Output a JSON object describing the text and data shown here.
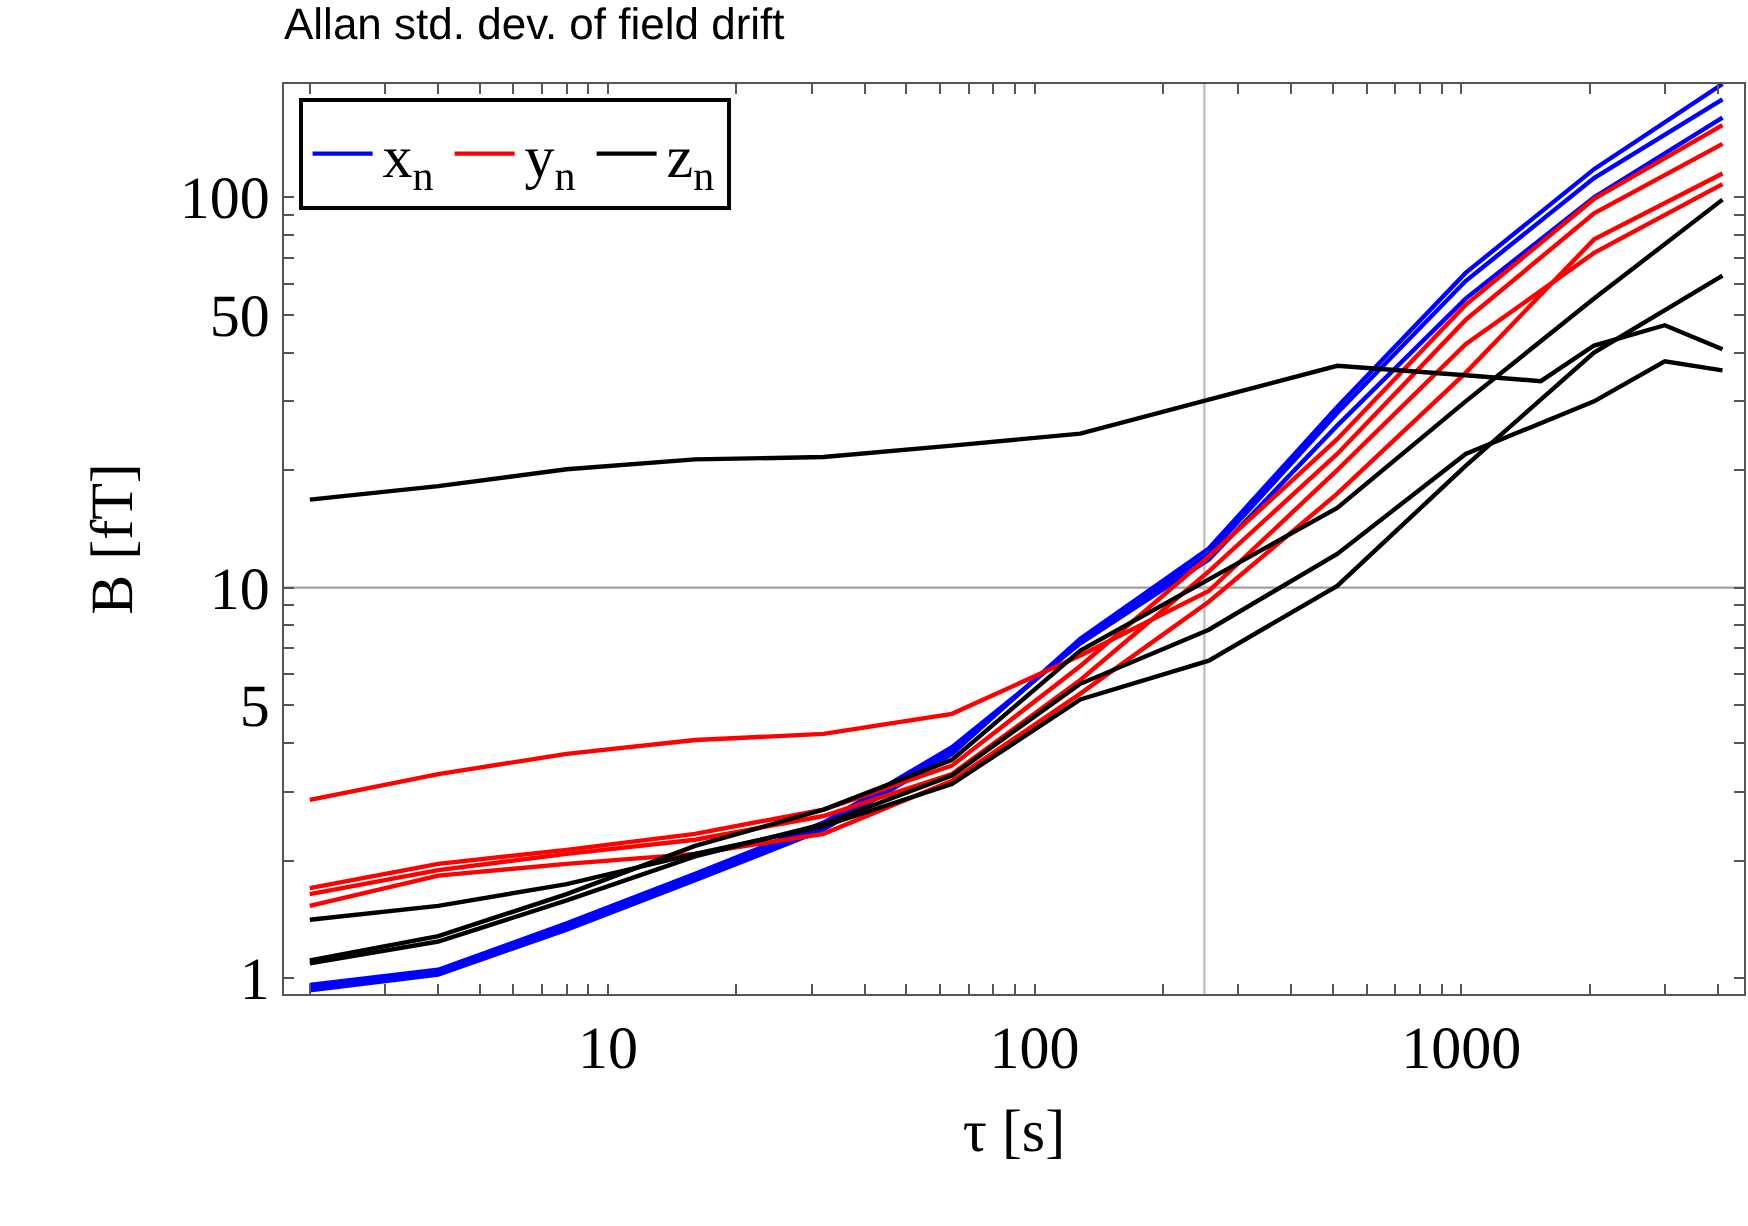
{
  "chart_data": {
    "type": "line",
    "title": "Allan std. dev. of field drift",
    "xlabel": "τ [s]",
    "ylabel": "B [fT]",
    "log": "xy",
    "grid": false,
    "legend": "top left",
    "marker": "none",
    "line_style": "solid",
    "x": [
      2,
      4,
      8,
      16,
      32,
      64,
      128,
      256,
      512,
      1024,
      2048,
      4096
    ],
    "xlim": [
      1.74,
      4600
    ],
    "ylim": [
      0.91,
      195
    ],
    "xticks": [
      {
        "value": 2,
        "label": null
      },
      {
        "value": 3,
        "label": null
      },
      {
        "value": 4,
        "label": null
      },
      {
        "value": 5,
        "label": null
      },
      {
        "value": 6,
        "label": null
      },
      {
        "value": 7,
        "label": null
      },
      {
        "value": 8,
        "label": null
      },
      {
        "value": 9,
        "label": null
      },
      10,
      {
        "value": 20,
        "label": null
      },
      {
        "value": 30,
        "label": null
      },
      {
        "value": 40,
        "label": null
      },
      {
        "value": 50,
        "label": null
      },
      {
        "value": 60,
        "label": null
      },
      {
        "value": 70,
        "label": null
      },
      {
        "value": 80,
        "label": null
      },
      {
        "value": 90,
        "label": null
      },
      100,
      {
        "value": 200,
        "label": null
      },
      {
        "value": 300,
        "label": null
      },
      {
        "value": 400,
        "label": null
      },
      {
        "value": 500,
        "label": null
      },
      {
        "value": 600,
        "label": null
      },
      {
        "value": 700,
        "label": null
      },
      {
        "value": 800,
        "label": null
      },
      {
        "value": 900,
        "label": null
      },
      1000,
      {
        "value": 2000,
        "label": null
      },
      {
        "value": 3000,
        "label": null
      },
      {
        "value": 4000,
        "label": null
      }
    ],
    "yticks": [
      1,
      {
        "value": 2,
        "label": null
      },
      {
        "value": 3,
        "label": null
      },
      {
        "value": 4,
        "label": null
      },
      5,
      {
        "value": 6,
        "label": null
      },
      {
        "value": 7,
        "label": null
      },
      {
        "value": 8,
        "label": null
      },
      {
        "value": 9,
        "label": null
      },
      10,
      {
        "value": 20,
        "label": null
      },
      {
        "value": 30,
        "label": null
      },
      {
        "value": 40,
        "label": null
      },
      50,
      {
        "value": 60,
        "label": null
      },
      {
        "value": 70,
        "label": null
      },
      {
        "value": 80,
        "label": null
      },
      {
        "value": 90,
        "label": null
      },
      100
    ],
    "ref_lines": [
      {
        "axis": "y",
        "value": 10,
        "color": "#a0a0a0"
      },
      {
        "axis": "x",
        "value": 250,
        "color": "#c0c0c0"
      }
    ],
    "series": [
      {
        "name": "x$_{n}$",
        "color": "#0000ff",
        "values": [
          0.93,
          1.02,
          1.33,
          1.78,
          2.4,
          3.75,
          7.4,
          12.6,
          29,
          64,
          118,
          195
        ]
      },
      {
        "color": "#0000ff",
        "values": [
          0.95,
          1.04,
          1.36,
          1.82,
          2.45,
          3.8,
          7.3,
          12.2,
          28,
          61,
          112,
          178
        ]
      },
      {
        "color": "#0000ff",
        "values": [
          0.96,
          1.05,
          1.38,
          1.85,
          2.5,
          3.9,
          7.2,
          11.8,
          26,
          55,
          100,
          160
        ]
      },
      {
        "name": "y$_{n}$",
        "color": "#ff0000",
        "values": [
          2.86,
          3.33,
          3.75,
          4.07,
          4.22,
          4.75,
          6.7,
          9.8,
          20,
          42,
          72,
          108
        ]
      },
      {
        "color": "#ff0000",
        "values": [
          1.7,
          1.96,
          2.13,
          2.34,
          2.7,
          3.5,
          6.3,
          12,
          24,
          53,
          99,
          153
        ]
      },
      {
        "color": "#ff0000",
        "values": [
          1.64,
          1.89,
          2.08,
          2.26,
          2.6,
          3.33,
          5.8,
          11,
          22,
          48.5,
          91,
          137
        ]
      },
      {
        "color": "#ff0000",
        "values": [
          1.53,
          1.83,
          1.96,
          2.08,
          2.34,
          3.2,
          5.35,
          9.2,
          17.4,
          35.5,
          78,
          115
        ]
      },
      {
        "name": "z$_{n}$",
        "color": "#000000",
        "x": [
          2,
          4,
          8,
          16,
          32,
          64,
          128,
          256,
          512,
          1024,
          1536,
          2048,
          3000,
          4096
        ],
        "values": [
          16.8,
          18.2,
          20.1,
          21.3,
          21.6,
          23.1,
          24.8,
          30.3,
          37,
          35,
          33.8,
          41.7,
          47,
          40.8
        ]
      },
      {
        "color": "#000000",
        "values": [
          1.11,
          1.28,
          1.64,
          2.18,
          2.7,
          3.62,
          6.9,
          10.5,
          16,
          30,
          55,
          98.6
        ]
      },
      {
        "color": "#000000",
        "values": [
          1.41,
          1.53,
          1.74,
          2.08,
          2.45,
          3.14,
          5.17,
          6.5,
          10.1,
          20.5,
          40,
          63
        ]
      },
      {
        "color": "#000000",
        "x": [
          2,
          4,
          8,
          16,
          32,
          64,
          128,
          256,
          512,
          1024,
          2048,
          3000,
          4096
        ],
        "values": [
          1.09,
          1.24,
          1.58,
          2.05,
          2.48,
          3.3,
          5.67,
          7.8,
          12.2,
          22,
          30,
          38,
          36
        ]
      }
    ]
  }
}
